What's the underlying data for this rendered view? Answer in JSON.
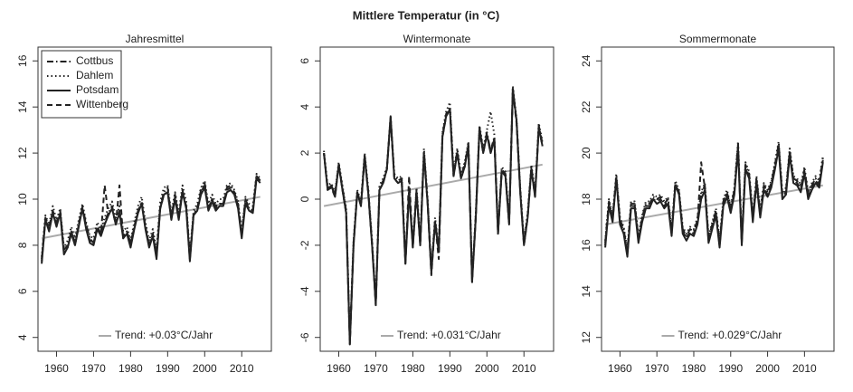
{
  "title": "Mittlere Temperatur (in °C)",
  "chart_data": [
    {
      "type": "line",
      "title": "Jahresmittel",
      "legend": "top-left",
      "x": [
        1956,
        1957,
        1958,
        1959,
        1960,
        1961,
        1962,
        1963,
        1964,
        1965,
        1966,
        1967,
        1968,
        1969,
        1970,
        1971,
        1972,
        1973,
        1974,
        1975,
        1976,
        1977,
        1978,
        1979,
        1980,
        1981,
        1982,
        1983,
        1984,
        1985,
        1986,
        1987,
        1988,
        1989,
        1990,
        1991,
        1992,
        1993,
        1994,
        1995,
        1996,
        1997,
        1998,
        1999,
        2000,
        2001,
        2002,
        2003,
        2004,
        2005,
        2006,
        2007,
        2008,
        2009,
        2010,
        2011,
        2012,
        2013,
        2014,
        2015
      ],
      "xlim": [
        1955,
        2018
      ],
      "xticks": [
        1960,
        1970,
        1980,
        1990,
        2000,
        2010
      ],
      "ylim": [
        3.4,
        16.6
      ],
      "yticks": [
        4,
        6,
        8,
        10,
        12,
        14,
        16
      ],
      "series": [
        {
          "name": "Cottbus",
          "color": "#222222",
          "dash": "7,3,1.5,3",
          "values": [
            7.4,
            9.2,
            8.8,
            9.5,
            9.0,
            9.5,
            7.8,
            8.0,
            8.6,
            8.1,
            8.9,
            9.7,
            8.9,
            8.3,
            8.1,
            8.8,
            8.6,
            9.0,
            9.4,
            9.7,
            9.0,
            9.5,
            8.4,
            8.6,
            8.1,
            8.8,
            9.5,
            9.9,
            8.8,
            8.0,
            8.5,
            7.6,
            9.7,
            10.3,
            10.5,
            9.2,
            10.2,
            9.2,
            10.4,
            9.7,
            7.5,
            9.4,
            9.6,
            10.4,
            10.7,
            9.6,
            10.0,
            9.7,
            9.8,
            9.8,
            10.5,
            10.6,
            10.3,
            9.8,
            8.5,
            10.0,
            9.6,
            9.5,
            11.0,
            10.8
          ]
        },
        {
          "name": "Dahlem",
          "color": "#222222",
          "dash": "1.5,3",
          "values": [
            7.5,
            9.3,
            8.9,
            9.7,
            9.1,
            9.6,
            7.9,
            8.2,
            8.8,
            8.3,
            9.1,
            9.8,
            9.0,
            8.4,
            8.3,
            9.0,
            8.7,
            9.2,
            9.6,
            9.9,
            9.2,
            9.7,
            8.6,
            8.8,
            8.2,
            9.0,
            9.7,
            10.1,
            9.0,
            8.2,
            8.7,
            7.8,
            9.9,
            10.5,
            10.6,
            9.4,
            10.3,
            9.4,
            10.6,
            9.9,
            7.6,
            9.5,
            9.8,
            10.5,
            10.8,
            9.8,
            10.2,
            9.8,
            10.0,
            10.0,
            10.6,
            10.7,
            10.4,
            9.9,
            8.6,
            10.1,
            9.8,
            9.7,
            11.1,
            10.9
          ]
        },
        {
          "name": "Potsdam",
          "color": "#222222",
          "dash": "none",
          "values": [
            7.2,
            9.1,
            8.6,
            9.4,
            8.8,
            9.4,
            7.6,
            7.9,
            8.5,
            8.0,
            8.8,
            9.6,
            8.7,
            8.1,
            8.0,
            8.7,
            8.4,
            8.9,
            9.3,
            9.6,
            8.9,
            9.4,
            8.3,
            8.5,
            7.9,
            8.7,
            9.4,
            9.8,
            8.7,
            7.9,
            8.4,
            7.4,
            9.6,
            10.2,
            10.3,
            9.1,
            10.0,
            9.1,
            10.3,
            9.6,
            7.3,
            9.3,
            9.5,
            10.2,
            10.5,
            9.5,
            9.9,
            9.5,
            9.7,
            9.7,
            10.3,
            10.4,
            10.2,
            9.6,
            8.3,
            9.8,
            9.5,
            9.4,
            10.9,
            10.7
          ]
        },
        {
          "name": "Wittenberg",
          "color": "#222222",
          "dash": "6,4",
          "values": [
            7.3,
            9.1,
            8.7,
            9.4,
            8.9,
            9.4,
            7.7,
            7.9,
            8.6,
            8.0,
            8.9,
            9.6,
            8.8,
            8.2,
            8.1,
            8.8,
            8.5,
            10.6,
            9.3,
            9.6,
            8.9,
            10.6,
            8.3,
            8.6,
            8.0,
            8.8,
            9.4,
            9.8,
            8.8,
            8.0,
            8.5,
            7.5,
            9.6,
            10.2,
            10.3,
            9.2,
            10.1,
            9.2,
            10.3,
            9.7,
            7.4,
            9.3,
            9.6,
            10.3,
            10.6,
            9.6,
            10.0,
            9.6,
            9.8,
            9.8,
            10.4,
            10.5,
            10.3,
            9.7,
            8.4,
            9.9,
            9.6,
            9.5,
            11.0,
            10.8
          ]
        }
      ],
      "trend": {
        "label": "Trend: +0.03°C/Jahr",
        "color": "#aaaaaa",
        "x": [
          1956,
          2015
        ],
        "values": [
          8.3,
          10.1
        ]
      }
    },
    {
      "type": "line",
      "title": "Wintermonate",
      "x": [
        1956,
        1957,
        1958,
        1959,
        1960,
        1961,
        1962,
        1963,
        1964,
        1965,
        1966,
        1967,
        1968,
        1969,
        1970,
        1971,
        1972,
        1973,
        1974,
        1975,
        1976,
        1977,
        1978,
        1979,
        1980,
        1981,
        1982,
        1983,
        1984,
        1985,
        1986,
        1987,
        1988,
        1989,
        1990,
        1991,
        1992,
        1993,
        1994,
        1995,
        1996,
        1997,
        1998,
        1999,
        2000,
        2001,
        2002,
        2003,
        2004,
        2005,
        2006,
        2007,
        2008,
        2009,
        2010,
        2011,
        2012,
        2013,
        2014,
        2015
      ],
      "xlim": [
        1955,
        2018
      ],
      "xticks": [
        1960,
        1970,
        1980,
        1990,
        2000,
        2010
      ],
      "ylim": [
        -6.6,
        6.6
      ],
      "yticks": [
        -6,
        -4,
        -2,
        0,
        2,
        4,
        6
      ],
      "series": [
        {
          "name": "Cottbus",
          "color": "#222222",
          "dash": "7,3,1.5,3",
          "values": [
            2.0,
            0.5,
            0.6,
            0.2,
            1.5,
            0.5,
            -0.5,
            -6.2,
            -1.9,
            0.3,
            -0.2,
            1.9,
            0.3,
            -1.9,
            -4.5,
            0.5,
            0.8,
            1.3,
            3.5,
            1.0,
            0.8,
            0.9,
            -2.7,
            0.4,
            -2.0,
            0.4,
            -1.9,
            2.1,
            -0.1,
            -3.1,
            -0.9,
            -2.2,
            2.8,
            3.7,
            4.0,
            1.1,
            2.1,
            1.0,
            1.5,
            2.4,
            -3.5,
            -0.7,
            3.1,
            2.1,
            2.9,
            2.1,
            2.7,
            -1.4,
            1.3,
            1.1,
            -1.0,
            4.8,
            3.4,
            0.4,
            -1.9,
            -0.7,
            1.4,
            0.2,
            3.2,
            2.4
          ]
        },
        {
          "name": "Dahlem",
          "color": "#222222",
          "dash": "1.5,3",
          "values": [
            2.1,
            0.6,
            0.7,
            0.3,
            1.6,
            0.6,
            -0.4,
            -6.1,
            -1.8,
            0.4,
            -0.1,
            2.0,
            0.4,
            -1.8,
            -4.4,
            0.6,
            0.9,
            1.4,
            3.6,
            1.1,
            0.9,
            1.0,
            -2.6,
            0.5,
            -1.9,
            0.5,
            -1.8,
            2.2,
            0.0,
            -3.0,
            -0.8,
            -2.1,
            2.9,
            3.8,
            4.2,
            1.2,
            2.2,
            1.1,
            1.6,
            2.5,
            -3.4,
            -0.6,
            3.2,
            2.2,
            3.0,
            3.8,
            2.8,
            -1.3,
            1.4,
            1.2,
            -0.9,
            4.9,
            3.5,
            0.5,
            -1.8,
            -0.6,
            1.5,
            0.3,
            3.3,
            2.5
          ]
        },
        {
          "name": "Potsdam",
          "color": "#222222",
          "dash": "none",
          "values": [
            2.0,
            0.4,
            0.6,
            0.1,
            1.5,
            0.4,
            -0.6,
            -6.3,
            -2.0,
            0.3,
            -0.3,
            1.9,
            0.2,
            -2.0,
            -4.6,
            0.4,
            0.7,
            1.3,
            3.6,
            0.9,
            0.7,
            0.8,
            -2.8,
            0.3,
            -2.1,
            0.3,
            -2.0,
            2.0,
            -0.2,
            -3.2,
            -1.0,
            -2.3,
            2.7,
            3.6,
            3.9,
            1.0,
            2.0,
            0.9,
            1.4,
            2.3,
            -3.6,
            -0.8,
            3.1,
            2.0,
            2.8,
            2.0,
            2.6,
            -1.5,
            1.2,
            1.0,
            -1.1,
            4.8,
            3.4,
            0.3,
            -2.0,
            -0.8,
            1.3,
            0.1,
            3.1,
            2.3
          ]
        },
        {
          "name": "Wittenberg",
          "color": "#222222",
          "dash": "6,4",
          "values": [
            2.0,
            0.4,
            0.5,
            0.1,
            1.5,
            0.4,
            -0.6,
            -6.3,
            -2.0,
            0.3,
            -0.3,
            1.8,
            0.2,
            -2.0,
            -4.6,
            0.4,
            0.7,
            1.3,
            3.5,
            0.9,
            0.7,
            0.8,
            -2.8,
            1.0,
            -2.1,
            0.3,
            -2.0,
            2.0,
            -0.2,
            -3.3,
            -1.0,
            -2.6,
            2.7,
            3.6,
            3.9,
            1.0,
            2.0,
            0.9,
            1.4,
            2.3,
            -3.6,
            -0.8,
            3.0,
            2.0,
            2.8,
            2.0,
            2.6,
            -1.5,
            1.2,
            1.0,
            -1.1,
            4.7,
            3.3,
            0.3,
            -2.0,
            -0.8,
            1.3,
            0.1,
            3.1,
            2.3
          ]
        }
      ],
      "trend": {
        "label": "Trend: +0.031°C/Jahr",
        "color": "#aaaaaa",
        "x": [
          1956,
          2015
        ],
        "values": [
          -0.3,
          1.5
        ]
      }
    },
    {
      "type": "line",
      "title": "Sommermonate",
      "x": [
        1956,
        1957,
        1958,
        1959,
        1960,
        1961,
        1962,
        1963,
        1964,
        1965,
        1966,
        1967,
        1968,
        1969,
        1970,
        1971,
        1972,
        1973,
        1974,
        1975,
        1976,
        1977,
        1978,
        1979,
        1980,
        1981,
        1982,
        1983,
        1984,
        1985,
        1986,
        1987,
        1988,
        1989,
        1990,
        1991,
        1992,
        1993,
        1994,
        1995,
        1996,
        1997,
        1998,
        1999,
        2000,
        2001,
        2002,
        2003,
        2004,
        2005,
        2006,
        2007,
        2008,
        2009,
        2010,
        2011,
        2012,
        2013,
        2014,
        2015
      ],
      "xlim": [
        1955,
        2018
      ],
      "xticks": [
        1960,
        1970,
        1980,
        1990,
        2000,
        2010
      ],
      "ylim": [
        11.4,
        24.6
      ],
      "yticks": [
        12,
        14,
        16,
        18,
        20,
        22,
        24
      ],
      "series": [
        {
          "name": "Cottbus",
          "color": "#222222",
          "dash": "7,3,1.5,3",
          "values": [
            16.1,
            17.9,
            17.2,
            19.0,
            17.1,
            16.7,
            15.7,
            17.8,
            17.8,
            16.3,
            17.2,
            17.8,
            17.8,
            18.1,
            18.0,
            18.1,
            17.8,
            18.0,
            16.6,
            18.7,
            18.3,
            16.7,
            16.4,
            16.7,
            16.6,
            17.1,
            18.2,
            18.6,
            16.3,
            16.9,
            17.5,
            16.1,
            17.9,
            18.3,
            17.6,
            18.4,
            20.4,
            16.2,
            19.5,
            19.1,
            17.2,
            18.9,
            17.4,
            18.6,
            18.3,
            18.7,
            19.5,
            20.4,
            18.2,
            18.4,
            20.1,
            18.9,
            18.8,
            18.5,
            19.3,
            18.2,
            18.6,
            18.9,
            18.7,
            19.8
          ]
        },
        {
          "name": "Dahlem",
          "color": "#222222",
          "dash": "1.5,3",
          "values": [
            16.2,
            18.0,
            17.3,
            19.1,
            17.2,
            16.8,
            15.8,
            17.9,
            17.9,
            16.4,
            17.3,
            17.9,
            17.9,
            18.2,
            18.1,
            18.2,
            17.9,
            18.1,
            16.7,
            18.8,
            18.4,
            16.8,
            16.5,
            16.8,
            16.7,
            17.2,
            18.3,
            18.7,
            16.4,
            17.0,
            17.6,
            16.2,
            18.0,
            18.4,
            17.7,
            18.5,
            20.5,
            16.3,
            19.6,
            19.2,
            17.3,
            19.0,
            17.5,
            18.7,
            18.4,
            18.8,
            19.6,
            20.5,
            18.3,
            18.5,
            20.2,
            19.0,
            18.9,
            18.6,
            19.4,
            18.3,
            18.7,
            19.0,
            18.8,
            19.9
          ]
        },
        {
          "name": "Potsdam",
          "color": "#222222",
          "dash": "none",
          "values": [
            15.9,
            17.7,
            17.0,
            18.9,
            16.9,
            16.5,
            15.5,
            17.6,
            17.6,
            16.1,
            17.0,
            17.6,
            17.6,
            18.0,
            17.8,
            17.9,
            17.6,
            17.8,
            16.4,
            18.6,
            18.2,
            16.5,
            16.2,
            16.5,
            16.4,
            16.9,
            18.0,
            18.4,
            16.1,
            16.7,
            17.3,
            15.9,
            17.7,
            18.1,
            17.4,
            18.2,
            20.2,
            16.0,
            19.3,
            18.9,
            17.0,
            18.7,
            17.2,
            18.4,
            18.1,
            18.5,
            19.3,
            20.2,
            18.0,
            18.2,
            19.9,
            18.7,
            18.6,
            18.3,
            19.1,
            18.0,
            18.4,
            18.7,
            18.5,
            19.6
          ]
        },
        {
          "name": "Wittenberg",
          "color": "#222222",
          "dash": "6,4",
          "values": [
            16.0,
            17.8,
            17.1,
            18.9,
            17.0,
            16.6,
            15.6,
            17.7,
            17.7,
            16.2,
            17.1,
            17.7,
            17.7,
            18.0,
            17.9,
            18.0,
            17.7,
            17.9,
            16.5,
            18.6,
            18.3,
            16.6,
            16.3,
            16.6,
            16.5,
            17.0,
            19.6,
            18.5,
            16.2,
            16.8,
            17.4,
            16.0,
            17.8,
            18.2,
            17.5,
            18.3,
            20.3,
            16.1,
            19.4,
            19.0,
            17.1,
            18.8,
            17.3,
            18.5,
            18.2,
            18.6,
            19.4,
            20.3,
            18.1,
            18.3,
            20.0,
            18.8,
            18.7,
            18.4,
            19.2,
            18.1,
            18.5,
            18.8,
            18.6,
            19.7
          ]
        }
      ],
      "trend": {
        "label": "Trend: +0.029°C/Jahr",
        "color": "#aaaaaa",
        "x": [
          1956,
          2015
        ],
        "values": [
          16.9,
          18.6
        ]
      }
    }
  ]
}
